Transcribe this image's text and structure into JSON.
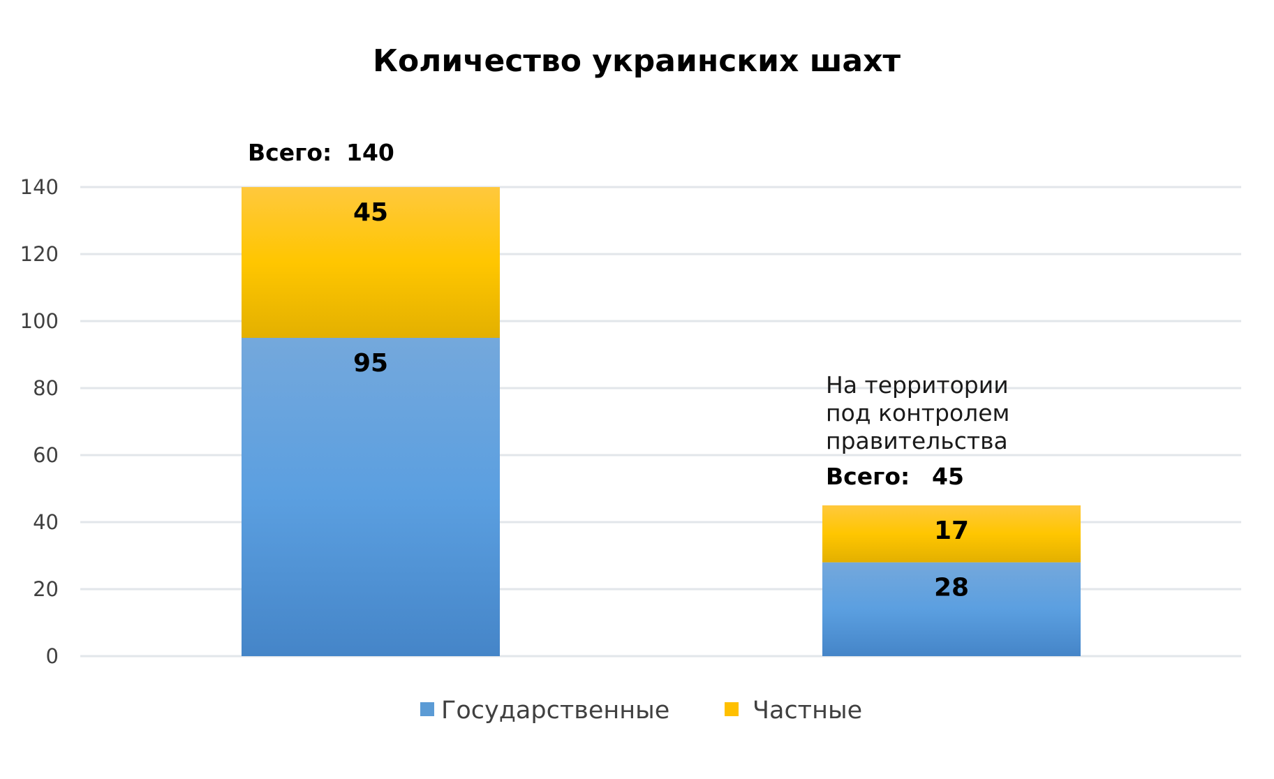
{
  "chart_data": {
    "type": "bar",
    "stacked": true,
    "title": "Количество украинских шахт",
    "categories": [
      "",
      ""
    ],
    "series": [
      {
        "name": "Государственные",
        "values": [
          95,
          28
        ],
        "color": "#5b9bd5"
      },
      {
        "name": "Частные",
        "values": [
          45,
          17
        ],
        "color": "#ffc000"
      }
    ],
    "totals": [
      {
        "label": "Всего:",
        "value": "140"
      },
      {
        "label": "Всего:",
        "value": "45"
      }
    ],
    "annotation": [
      "На территории",
      "под контролем",
      "правительства"
    ],
    "yticks": [
      "0",
      "20",
      "40",
      "60",
      "80",
      "100",
      "120",
      "140"
    ],
    "ylim": [
      0,
      140
    ],
    "grid": true,
    "legend_position": "bottom"
  }
}
